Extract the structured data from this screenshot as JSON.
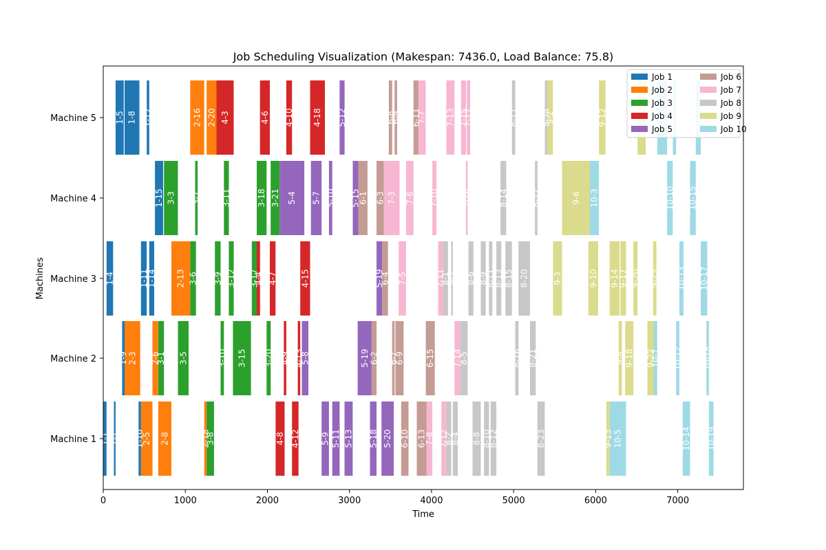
{
  "chart_data": {
    "type": "gantt",
    "title": "Job Scheduling Visualization (Makespan: 7436.0, Load Balance: 75.8)",
    "xlabel": "Time",
    "ylabel": "Machines",
    "xlim": [
      0,
      7800
    ],
    "xticks": [
      0,
      1000,
      2000,
      3000,
      4000,
      5000,
      6000,
      7000
    ],
    "machines": [
      "Machine 1",
      "Machine 2",
      "Machine 3",
      "Machine 4",
      "Machine 5"
    ],
    "legend_position": "top-right",
    "grid": false,
    "jobs": [
      {
        "name": "Job 1",
        "color": "#1f77b4"
      },
      {
        "name": "Job 2",
        "color": "#ff7f0e"
      },
      {
        "name": "Job 3",
        "color": "#2ca02c"
      },
      {
        "name": "Job 4",
        "color": "#d62728"
      },
      {
        "name": "Job 5",
        "color": "#9467bd"
      },
      {
        "name": "Job 6",
        "color": "#c49c94"
      },
      {
        "name": "Job 7",
        "color": "#f7b6d2"
      },
      {
        "name": "Job 8",
        "color": "#c7c7c7"
      },
      {
        "name": "Job 9",
        "color": "#dbdb8d"
      },
      {
        "name": "Job 10",
        "color": "#9edae5"
      }
    ],
    "tasks": [
      {
        "machine": 0,
        "job": 0,
        "start": 0,
        "end": 40,
        "label": "1-1"
      },
      {
        "machine": 0,
        "job": 0,
        "start": 130,
        "end": 150,
        "label": "1-7"
      },
      {
        "machine": 0,
        "job": 0,
        "start": 430,
        "end": 460,
        "label": "1-10"
      },
      {
        "machine": 0,
        "job": 1,
        "start": 460,
        "end": 600,
        "label": "2-5"
      },
      {
        "machine": 0,
        "job": 1,
        "start": 670,
        "end": 830,
        "label": "2-8"
      },
      {
        "machine": 0,
        "job": 1,
        "start": 1230,
        "end": 1260,
        "label": "2-18"
      },
      {
        "machine": 0,
        "job": 2,
        "start": 1260,
        "end": 1350,
        "label": "3-8"
      },
      {
        "machine": 0,
        "job": 3,
        "start": 2100,
        "end": 2210,
        "label": "4-8"
      },
      {
        "machine": 0,
        "job": 3,
        "start": 2300,
        "end": 2380,
        "label": "4-12"
      },
      {
        "machine": 0,
        "job": 4,
        "start": 2660,
        "end": 2750,
        "label": "5-9"
      },
      {
        "machine": 0,
        "job": 4,
        "start": 2790,
        "end": 2880,
        "label": "5-11"
      },
      {
        "machine": 0,
        "job": 4,
        "start": 2940,
        "end": 3040,
        "label": "5-13"
      },
      {
        "machine": 0,
        "job": 4,
        "start": 3250,
        "end": 3330,
        "label": "5-18"
      },
      {
        "machine": 0,
        "job": 4,
        "start": 3390,
        "end": 3540,
        "label": "5-20"
      },
      {
        "machine": 0,
        "job": 5,
        "start": 3630,
        "end": 3720,
        "label": "6-10"
      },
      {
        "machine": 0,
        "job": 5,
        "start": 3820,
        "end": 3940,
        "label": "6-13"
      },
      {
        "machine": 0,
        "job": 6,
        "start": 3940,
        "end": 4010,
        "label": "7-8"
      },
      {
        "machine": 0,
        "job": 6,
        "start": 4120,
        "end": 4180,
        "label": "7-12"
      },
      {
        "machine": 0,
        "job": 7,
        "start": 4180,
        "end": 4240,
        "label": "8-2"
      },
      {
        "machine": 0,
        "job": 7,
        "start": 4260,
        "end": 4320,
        "label": "8-4"
      },
      {
        "machine": 0,
        "job": 7,
        "start": 4500,
        "end": 4600,
        "label": "8-8"
      },
      {
        "machine": 0,
        "job": 7,
        "start": 4640,
        "end": 4700,
        "label": "8-10"
      },
      {
        "machine": 0,
        "job": 7,
        "start": 4720,
        "end": 4790,
        "label": "8-12"
      },
      {
        "machine": 0,
        "job": 7,
        "start": 5290,
        "end": 5380,
        "label": "8-23"
      },
      {
        "machine": 0,
        "job": 8,
        "start": 6130,
        "end": 6170,
        "label": "9-13"
      },
      {
        "machine": 0,
        "job": 9,
        "start": 6170,
        "end": 6370,
        "label": "10-5"
      },
      {
        "machine": 0,
        "job": 9,
        "start": 7060,
        "end": 7150,
        "label": "10-14"
      },
      {
        "machine": 0,
        "job": 9,
        "start": 7380,
        "end": 7436,
        "label": "10-19"
      },
      {
        "machine": 1,
        "job": 0,
        "start": 230,
        "end": 260,
        "label": "1-9"
      },
      {
        "machine": 1,
        "job": 1,
        "start": 260,
        "end": 450,
        "label": "2-3"
      },
      {
        "machine": 1,
        "job": 1,
        "start": 600,
        "end": 670,
        "label": "2-6"
      },
      {
        "machine": 1,
        "job": 2,
        "start": 670,
        "end": 740,
        "label": "3-1"
      },
      {
        "machine": 1,
        "job": 2,
        "start": 910,
        "end": 1040,
        "label": "3-5"
      },
      {
        "machine": 1,
        "job": 2,
        "start": 1430,
        "end": 1470,
        "label": "3-10"
      },
      {
        "machine": 1,
        "job": 2,
        "start": 1580,
        "end": 1800,
        "label": "3-15"
      },
      {
        "machine": 1,
        "job": 2,
        "start": 1990,
        "end": 2040,
        "label": "3-20"
      },
      {
        "machine": 1,
        "job": 3,
        "start": 2200,
        "end": 2230,
        "label": "4-9"
      },
      {
        "machine": 1,
        "job": 3,
        "start": 2370,
        "end": 2400,
        "label": "4-13"
      },
      {
        "machine": 1,
        "job": 4,
        "start": 2420,
        "end": 2500,
        "label": "5-8"
      },
      {
        "machine": 1,
        "job": 4,
        "start": 3100,
        "end": 3270,
        "label": "5-19"
      },
      {
        "machine": 1,
        "job": 5,
        "start": 3270,
        "end": 3330,
        "label": "6-2"
      },
      {
        "machine": 1,
        "job": 5,
        "start": 3520,
        "end": 3550,
        "label": "6-7"
      },
      {
        "machine": 1,
        "job": 5,
        "start": 3560,
        "end": 3660,
        "label": "6-9"
      },
      {
        "machine": 1,
        "job": 5,
        "start": 3930,
        "end": 4040,
        "label": "6-15"
      },
      {
        "machine": 1,
        "job": 6,
        "start": 4280,
        "end": 4350,
        "label": "7-14"
      },
      {
        "machine": 1,
        "job": 7,
        "start": 4350,
        "end": 4440,
        "label": "8-5"
      },
      {
        "machine": 1,
        "job": 7,
        "start": 5020,
        "end": 5060,
        "label": "8-16"
      },
      {
        "machine": 1,
        "job": 7,
        "start": 5200,
        "end": 5270,
        "label": "8-21"
      },
      {
        "machine": 1,
        "job": 8,
        "start": 6280,
        "end": 6320,
        "label": "9-8"
      },
      {
        "machine": 1,
        "job": 8,
        "start": 6360,
        "end": 6460,
        "label": "9-18"
      },
      {
        "machine": 1,
        "job": 8,
        "start": 6630,
        "end": 6710,
        "label": "9-22"
      },
      {
        "machine": 1,
        "job": 9,
        "start": 6710,
        "end": 6750,
        "label": "10-7"
      },
      {
        "machine": 1,
        "job": 9,
        "start": 6980,
        "end": 7020,
        "label": "10-12"
      },
      {
        "machine": 1,
        "job": 9,
        "start": 7350,
        "end": 7380,
        "label": "10-18"
      },
      {
        "machine": 2,
        "job": 0,
        "start": 40,
        "end": 120,
        "label": "1-4"
      },
      {
        "machine": 2,
        "job": 0,
        "start": 460,
        "end": 530,
        "label": "1-11"
      },
      {
        "machine": 2,
        "job": 0,
        "start": 560,
        "end": 620,
        "label": "1-14"
      },
      {
        "machine": 2,
        "job": 1,
        "start": 830,
        "end": 1060,
        "label": "2-13"
      },
      {
        "machine": 2,
        "job": 2,
        "start": 1060,
        "end": 1130,
        "label": "3-6"
      },
      {
        "machine": 2,
        "job": 2,
        "start": 1360,
        "end": 1430,
        "label": "3-9"
      },
      {
        "machine": 2,
        "job": 2,
        "start": 1530,
        "end": 1590,
        "label": "3-12"
      },
      {
        "machine": 2,
        "job": 2,
        "start": 1810,
        "end": 1870,
        "label": "3-17"
      },
      {
        "machine": 2,
        "job": 3,
        "start": 1870,
        "end": 1910,
        "label": "4-4"
      },
      {
        "machine": 2,
        "job": 3,
        "start": 2030,
        "end": 2100,
        "label": "4-7"
      },
      {
        "machine": 2,
        "job": 3,
        "start": 2400,
        "end": 2520,
        "label": "4-15"
      },
      {
        "machine": 2,
        "job": 4,
        "start": 3330,
        "end": 3400,
        "label": "5-19"
      },
      {
        "machine": 2,
        "job": 5,
        "start": 3400,
        "end": 3470,
        "label": "6-4"
      },
      {
        "machine": 2,
        "job": 6,
        "start": 3600,
        "end": 3690,
        "label": "7-5"
      },
      {
        "machine": 2,
        "job": 6,
        "start": 4080,
        "end": 4140,
        "label": "7-11"
      },
      {
        "machine": 2,
        "job": 7,
        "start": 4140,
        "end": 4200,
        "label": "8-1"
      },
      {
        "machine": 2,
        "job": 7,
        "start": 4240,
        "end": 4260,
        "label": "8-3"
      },
      {
        "machine": 2,
        "job": 7,
        "start": 4450,
        "end": 4510,
        "label": "8-6"
      },
      {
        "machine": 2,
        "job": 7,
        "start": 4600,
        "end": 4660,
        "label": "8-9"
      },
      {
        "machine": 2,
        "job": 7,
        "start": 4700,
        "end": 4740,
        "label": "8-11"
      },
      {
        "machine": 2,
        "job": 7,
        "start": 4790,
        "end": 4850,
        "label": "8-13"
      },
      {
        "machine": 2,
        "job": 7,
        "start": 4900,
        "end": 4980,
        "label": "8-15"
      },
      {
        "machine": 2,
        "job": 7,
        "start": 5060,
        "end": 5200,
        "label": "8-20"
      },
      {
        "machine": 2,
        "job": 8,
        "start": 5480,
        "end": 5590,
        "label": "9-3"
      },
      {
        "machine": 2,
        "job": 8,
        "start": 5910,
        "end": 6030,
        "label": "9-10"
      },
      {
        "machine": 2,
        "job": 8,
        "start": 6170,
        "end": 6290,
        "label": "9-14"
      },
      {
        "machine": 2,
        "job": 8,
        "start": 6300,
        "end": 6370,
        "label": "9-17"
      },
      {
        "machine": 2,
        "job": 8,
        "start": 6460,
        "end": 6510,
        "label": "9-20"
      },
      {
        "machine": 2,
        "job": 8,
        "start": 6700,
        "end": 6740,
        "label": "9-23"
      },
      {
        "machine": 2,
        "job": 9,
        "start": 7020,
        "end": 7070,
        "label": "10-13"
      },
      {
        "machine": 2,
        "job": 9,
        "start": 7280,
        "end": 7360,
        "label": "10-17"
      },
      {
        "machine": 3,
        "job": 0,
        "start": 630,
        "end": 730,
        "label": "1-15"
      },
      {
        "machine": 3,
        "job": 2,
        "start": 740,
        "end": 910,
        "label": "3-3"
      },
      {
        "machine": 3,
        "job": 2,
        "start": 1120,
        "end": 1150,
        "label": "3-7"
      },
      {
        "machine": 3,
        "job": 2,
        "start": 1470,
        "end": 1530,
        "label": "3-11"
      },
      {
        "machine": 3,
        "job": 2,
        "start": 1870,
        "end": 1990,
        "label": "3-18"
      },
      {
        "machine": 3,
        "job": 2,
        "start": 2040,
        "end": 2150,
        "label": "3-21"
      },
      {
        "machine": 3,
        "job": 4,
        "start": 2150,
        "end": 2450,
        "label": "5-4"
      },
      {
        "machine": 3,
        "job": 4,
        "start": 2530,
        "end": 2660,
        "label": "5-7"
      },
      {
        "machine": 3,
        "job": 4,
        "start": 2750,
        "end": 2790,
        "label": "5-10"
      },
      {
        "machine": 3,
        "job": 4,
        "start": 3040,
        "end": 3110,
        "label": "5-15"
      },
      {
        "machine": 3,
        "job": 5,
        "start": 3110,
        "end": 3220,
        "label": "6-1"
      },
      {
        "machine": 3,
        "job": 5,
        "start": 3330,
        "end": 3420,
        "label": "6-3"
      },
      {
        "machine": 3,
        "job": 6,
        "start": 3420,
        "end": 3610,
        "label": "7-3"
      },
      {
        "machine": 3,
        "job": 6,
        "start": 3690,
        "end": 3780,
        "label": "7-6"
      },
      {
        "machine": 3,
        "job": 6,
        "start": 4010,
        "end": 4060,
        "label": "7-10"
      },
      {
        "machine": 3,
        "job": 6,
        "start": 4420,
        "end": 4440,
        "label": "7-16"
      },
      {
        "machine": 3,
        "job": 7,
        "start": 4840,
        "end": 4910,
        "label": "8-14"
      },
      {
        "machine": 3,
        "job": 7,
        "start": 5260,
        "end": 5290,
        "label": "8-22"
      },
      {
        "machine": 3,
        "job": 8,
        "start": 5590,
        "end": 5930,
        "label": "9-6"
      },
      {
        "machine": 3,
        "job": 9,
        "start": 5930,
        "end": 6040,
        "label": "10-3"
      },
      {
        "machine": 3,
        "job": 9,
        "start": 6870,
        "end": 6940,
        "label": "10-10"
      },
      {
        "machine": 3,
        "job": 9,
        "start": 7150,
        "end": 7220,
        "label": "10-15"
      },
      {
        "machine": 4,
        "job": 0,
        "start": 150,
        "end": 250,
        "label": "1-5"
      },
      {
        "machine": 4,
        "job": 0,
        "start": 260,
        "end": 440,
        "label": "1-8"
      },
      {
        "machine": 4,
        "job": 0,
        "start": 530,
        "end": 560,
        "label": "1-12"
      },
      {
        "machine": 4,
        "job": 1,
        "start": 1060,
        "end": 1230,
        "label": "2-16"
      },
      {
        "machine": 4,
        "job": 1,
        "start": 1260,
        "end": 1380,
        "label": "2-20"
      },
      {
        "machine": 4,
        "job": 3,
        "start": 1380,
        "end": 1590,
        "label": "4-3"
      },
      {
        "machine": 4,
        "job": 3,
        "start": 1910,
        "end": 2030,
        "label": "4-6"
      },
      {
        "machine": 4,
        "job": 3,
        "start": 2230,
        "end": 2300,
        "label": "4-10"
      },
      {
        "machine": 4,
        "job": 3,
        "start": 2520,
        "end": 2700,
        "label": "4-18"
      },
      {
        "machine": 4,
        "job": 4,
        "start": 2880,
        "end": 2940,
        "label": "5-12"
      },
      {
        "machine": 4,
        "job": 5,
        "start": 3480,
        "end": 3520,
        "label": "6-8"
      },
      {
        "machine": 4,
        "job": 5,
        "start": 3550,
        "end": 3580,
        "label": "6-9"
      },
      {
        "machine": 4,
        "job": 5,
        "start": 3780,
        "end": 3840,
        "label": "6-11"
      },
      {
        "machine": 4,
        "job": 6,
        "start": 3840,
        "end": 3930,
        "label": "7-7"
      },
      {
        "machine": 4,
        "job": 6,
        "start": 4180,
        "end": 4280,
        "label": "7-13"
      },
      {
        "machine": 4,
        "job": 6,
        "start": 4360,
        "end": 4420,
        "label": "7-15"
      },
      {
        "machine": 4,
        "job": 6,
        "start": 4430,
        "end": 4470,
        "label": "7-17"
      },
      {
        "machine": 4,
        "job": 7,
        "start": 4980,
        "end": 5020,
        "label": "8-17"
      },
      {
        "machine": 4,
        "job": 7,
        "start": 5380,
        "end": 5410,
        "label": "8-24"
      },
      {
        "machine": 4,
        "job": 8,
        "start": 5410,
        "end": 5480,
        "label": "9-2"
      },
      {
        "machine": 4,
        "job": 8,
        "start": 6040,
        "end": 6120,
        "label": "9-12"
      },
      {
        "machine": 4,
        "job": 8,
        "start": 6510,
        "end": 6610,
        "label": "9-21"
      },
      {
        "machine": 4,
        "job": 9,
        "start": 6750,
        "end": 6870,
        "label": "10-9"
      },
      {
        "machine": 4,
        "job": 9,
        "start": 6940,
        "end": 6980,
        "label": "10-11"
      },
      {
        "machine": 4,
        "job": 9,
        "start": 7220,
        "end": 7280,
        "label": "10-16"
      }
    ]
  }
}
